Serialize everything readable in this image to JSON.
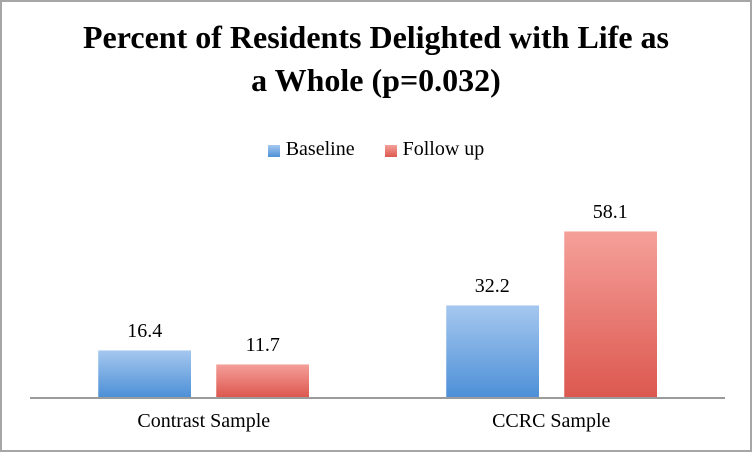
{
  "window": {
    "background": "#ffffff",
    "border_color": "#a6a6a6"
  },
  "chart_data": {
    "type": "bar",
    "title": "Percent of Residents Delighted with Life as a Whole (p=0.032)",
    "categories": [
      "Contrast Sample",
      "CCRC Sample"
    ],
    "series": [
      {
        "name": "Baseline",
        "values": [
          16.4,
          32.2
        ],
        "color_top": "#a6c8ef",
        "color_bottom": "#4d90d7"
      },
      {
        "name": "Follow up",
        "values": [
          11.7,
          58.1
        ],
        "color_top": "#f5a09a",
        "color_bottom": "#dc584f"
      }
    ],
    "xlabel": "",
    "ylabel": "",
    "ylim": [
      0,
      72
    ],
    "grid": false,
    "y_axis_visible": false,
    "legend_position": "top-center",
    "axis_line_color": "#9b9b9b",
    "text_color": "#000000",
    "data_labels_shown": true
  }
}
